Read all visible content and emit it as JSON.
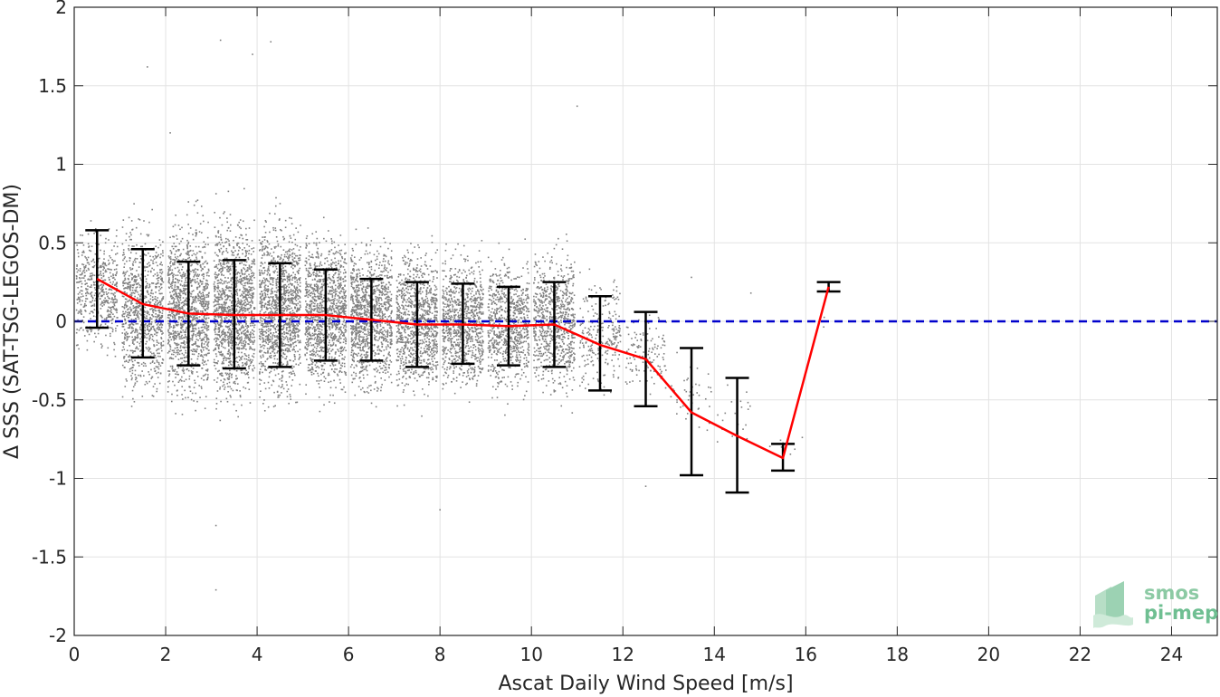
{
  "chart_data": {
    "type": "scatter",
    "xlabel": "Ascat Daily Wind Speed [m/s]",
    "ylabel": "Δ SSS (SAT-TSG-LEGOS-DM)",
    "xlim": [
      0,
      25
    ],
    "ylim": [
      -2,
      2
    ],
    "x_ticks": [
      0,
      2,
      4,
      6,
      8,
      10,
      12,
      14,
      16,
      18,
      20,
      22,
      24
    ],
    "y_ticks": [
      -2,
      -1.5,
      -1,
      -0.5,
      0,
      0.5,
      1,
      1.5,
      2
    ],
    "x_tick_labels": [
      "0",
      "2",
      "4",
      "6",
      "8",
      "10",
      "12",
      "14",
      "16",
      "18",
      "20",
      "22",
      "24"
    ],
    "y_tick_labels": [
      "-2",
      "-1.5",
      "-1",
      "-0.5",
      "0",
      "0.5",
      "1",
      "1.5",
      "2"
    ],
    "grid": true,
    "scatter_color": "#808080",
    "mean_color": "#ff0000",
    "error_bar_color": "#000000",
    "reference_color": "#0000cc",
    "reference_line": {
      "y": 0,
      "style": "dashed"
    },
    "binned": {
      "x": [
        0.5,
        1.5,
        2.5,
        3.5,
        4.5,
        5.5,
        6.5,
        7.5,
        8.5,
        9.5,
        10.5,
        11.5,
        12.5,
        13.5,
        14.5,
        15.5,
        16.5
      ],
      "mean": [
        0.27,
        0.11,
        0.05,
        0.04,
        0.04,
        0.04,
        0.01,
        -0.02,
        -0.02,
        -0.03,
        -0.02,
        -0.15,
        -0.24,
        -0.58,
        -0.73,
        -0.87,
        0.22
      ],
      "lower": [
        -0.04,
        -0.23,
        -0.28,
        -0.3,
        -0.29,
        -0.25,
        -0.25,
        -0.29,
        -0.27,
        -0.28,
        -0.29,
        -0.44,
        -0.54,
        -0.98,
        -1.09,
        -0.95,
        0.19
      ],
      "upper": [
        0.58,
        0.46,
        0.38,
        0.39,
        0.37,
        0.33,
        0.27,
        0.25,
        0.24,
        0.22,
        0.25,
        0.16,
        0.06,
        -0.17,
        -0.36,
        -0.78,
        0.25
      ]
    },
    "scatter_extent": {
      "x_range": [
        0,
        16.5
      ],
      "y_center": [
        0.2,
        0.07,
        0.06,
        0.07,
        0.08,
        0.06,
        0.03,
        0.0,
        -0.01,
        -0.02,
        0.0,
        -0.08,
        -0.2,
        -0.45,
        -0.6,
        -0.8,
        0.0
      ],
      "y_spread": [
        0.3,
        0.42,
        0.45,
        0.46,
        0.45,
        0.4,
        0.38,
        0.36,
        0.33,
        0.33,
        0.35,
        0.28,
        0.22,
        0.18,
        0.18,
        0.08,
        0.05
      ],
      "outliers": [
        [
          3.1,
          -1.3
        ],
        [
          3.2,
          1.79
        ],
        [
          4.3,
          1.78
        ],
        [
          3.9,
          1.7
        ],
        [
          1.6,
          1.62
        ],
        [
          3.1,
          -1.71
        ],
        [
          8.0,
          -1.2
        ],
        [
          12.5,
          -1.05
        ],
        [
          14.8,
          0.18
        ],
        [
          13.5,
          0.28
        ],
        [
          11.0,
          1.37
        ],
        [
          2.1,
          1.2
        ]
      ]
    }
  },
  "logo": {
    "line1": "smos",
    "line2": "pi-mep"
  }
}
